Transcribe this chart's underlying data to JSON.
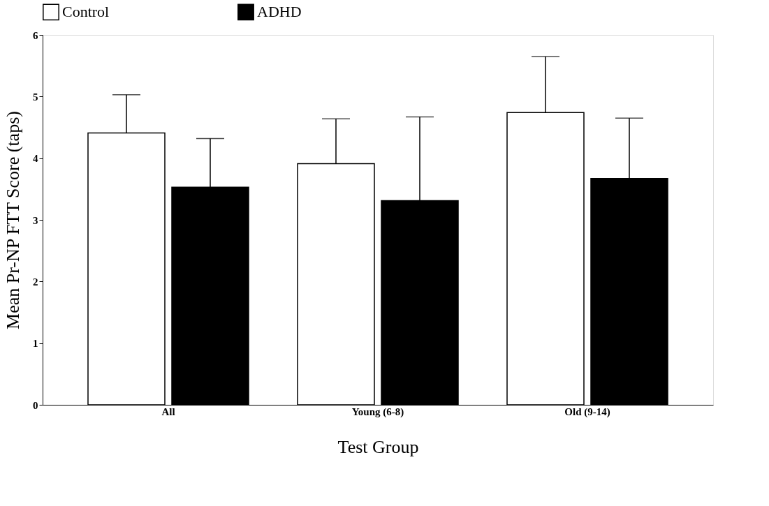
{
  "chart_data": {
    "type": "bar",
    "xlabel": "Test Group",
    "ylabel": "Mean Pr-NP FTT Score (taps)",
    "categories": [
      "All",
      "Young (6-8)",
      "Old (9-14)"
    ],
    "series": [
      {
        "name": "Control",
        "color": "#ffffff",
        "values": [
          4.41,
          3.91,
          4.74
        ],
        "errors": [
          [
            4.41,
            5.03
          ],
          [
            3.91,
            4.64
          ],
          [
            4.74,
            5.65
          ]
        ]
      },
      {
        "name": "ADHD",
        "color": "#000000",
        "values": [
          3.53,
          3.31,
          3.67
        ],
        "errors": [
          [
            3.53,
            4.32
          ],
          [
            3.31,
            4.67
          ],
          [
            3.67,
            4.65
          ]
        ]
      }
    ],
    "ylim": [
      0,
      6
    ],
    "yticks": [
      0,
      1,
      2,
      3,
      4,
      5,
      6
    ],
    "grid": false,
    "legend": "top"
  }
}
